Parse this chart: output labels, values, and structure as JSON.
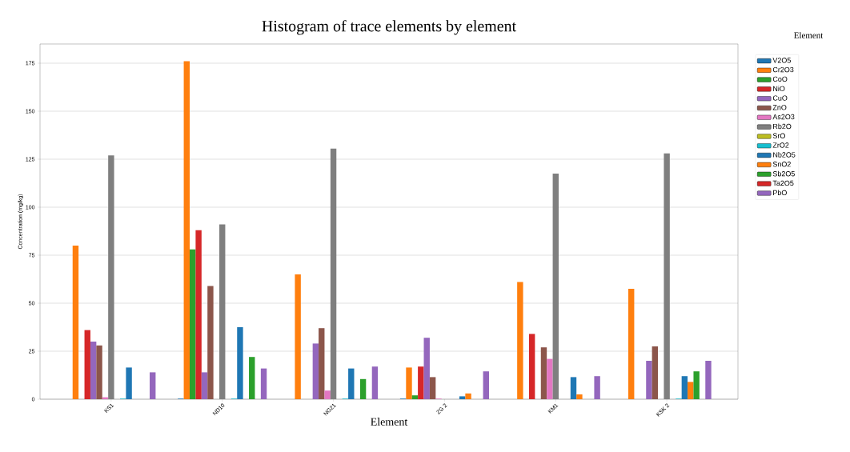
{
  "chart_data": {
    "type": "bar",
    "title": "Histogram of trace elements by element",
    "xlabel": "Element",
    "ylabel": "Concentration (mg/kg)",
    "legend_title": "Element",
    "categories": [
      "KS1",
      "ND10",
      "NG21",
      "ZG 2",
      "KM1",
      "KSK 2"
    ],
    "series": [
      {
        "name": "V2O5",
        "color": "#1f77b4",
        "values": [
          0,
          0.3,
          0,
          0.3,
          0,
          0
        ]
      },
      {
        "name": "Cr2O3",
        "color": "#ff7f0e",
        "values": [
          80,
          176,
          65,
          16.5,
          61,
          57.5
        ]
      },
      {
        "name": "CoO",
        "color": "#2ca02c",
        "values": [
          0,
          78,
          0,
          2,
          0,
          0
        ]
      },
      {
        "name": "NiO",
        "color": "#d62728",
        "values": [
          36,
          88,
          0,
          17,
          34,
          0
        ]
      },
      {
        "name": "CuO",
        "color": "#9467bd",
        "values": [
          30,
          14,
          29,
          32,
          0,
          20
        ]
      },
      {
        "name": "ZnO",
        "color": "#8c564b",
        "values": [
          28,
          59,
          37,
          11.5,
          27,
          27.5
        ]
      },
      {
        "name": "As2O3",
        "color": "#e377c2",
        "values": [
          1,
          0,
          4.5,
          0.3,
          21,
          0
        ]
      },
      {
        "name": "Rb2O",
        "color": "#7f7f7f",
        "values": [
          127,
          91,
          130.5,
          0,
          117.5,
          128
        ]
      },
      {
        "name": "SrO",
        "color": "#bcbd22",
        "values": [
          0,
          0,
          0,
          0,
          0,
          0
        ]
      },
      {
        "name": "ZrO2",
        "color": "#17becf",
        "values": [
          0.3,
          0.3,
          0.3,
          0,
          0,
          0.3
        ]
      },
      {
        "name": "Nb2O5",
        "color": "#1f77b4",
        "values": [
          16.5,
          37.5,
          16,
          1.5,
          11.5,
          12
        ]
      },
      {
        "name": "SnO2",
        "color": "#ff7f0e",
        "values": [
          0,
          0,
          0,
          3,
          2.5,
          9
        ]
      },
      {
        "name": "Sb2O5",
        "color": "#2ca02c",
        "values": [
          0,
          22,
          10.5,
          0,
          0,
          14.5
        ]
      },
      {
        "name": "Ta2O5",
        "color": "#d62728",
        "values": [
          0,
          0,
          0,
          0,
          0,
          0
        ]
      },
      {
        "name": "PbO",
        "color": "#9467bd",
        "values": [
          14,
          16,
          17,
          14.5,
          12,
          20
        ]
      }
    ],
    "ylim": [
      0,
      185
    ],
    "yticks": [
      0,
      25,
      50,
      75,
      100,
      125,
      150,
      175
    ],
    "grid": "y",
    "legend": "right"
  }
}
